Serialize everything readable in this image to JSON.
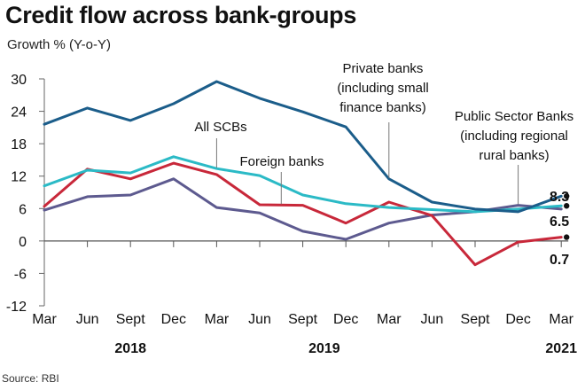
{
  "title": "Credit flow across bank-groups",
  "subtitle": "Growth % (Y-o-Y)",
  "source": "Source: RBI",
  "chart_data": {
    "type": "line",
    "title": "Credit flow across bank-groups",
    "ylabel": "Growth % (Y-o-Y)",
    "xlabel": "",
    "ylim": [
      -12,
      30
    ],
    "yticks": [
      "30",
      "24",
      "18",
      "12",
      "6",
      "0",
      "-6",
      "-12"
    ],
    "ytick_values": [
      30,
      24,
      18,
      12,
      6,
      0,
      -6,
      -12
    ],
    "categories": [
      "Mar",
      "Jun",
      "Sept",
      "Dec",
      "Mar",
      "Jun",
      "Sept",
      "Dec",
      "Mar",
      "Jun",
      "Sept",
      "Dec",
      "Mar"
    ],
    "years": [
      {
        "label": "2018",
        "under_index": 2
      },
      {
        "label": "2019",
        "under_index": 6.5
      },
      {
        "label": "2021",
        "under_index": 12
      }
    ],
    "grid": false,
    "series": [
      {
        "name": "Private banks (including small finance banks)",
        "color": "#1b5d8a",
        "values": [
          21.6,
          24.6,
          22.3,
          25.4,
          29.5,
          26.4,
          23.9,
          21.1,
          11.5,
          7.2,
          5.9,
          5.4,
          8.3
        ]
      },
      {
        "name": "All SCBs",
        "color": "#2bbac6",
        "values": [
          10.2,
          13.1,
          12.6,
          15.6,
          13.4,
          12.1,
          8.5,
          6.9,
          6.2,
          5.8,
          5.4,
          5.9,
          6.5
        ]
      },
      {
        "name": "Foreign banks",
        "color": "#c8283a",
        "values": [
          6.4,
          13.3,
          11.5,
          14.4,
          12.3,
          6.7,
          6.6,
          3.3,
          7.2,
          4.7,
          -4.4,
          -0.2,
          0.7
        ]
      },
      {
        "name": "Public Sector Banks (including regional rural banks)",
        "color": "#5d5a8f",
        "values": [
          5.7,
          8.2,
          8.5,
          11.5,
          6.2,
          5.2,
          1.8,
          0.3,
          3.3,
          4.8,
          5.4,
          6.6,
          5.9
        ]
      }
    ],
    "annotations": [
      {
        "name": "private-banks",
        "lines": [
          "Private banks",
          "(including small",
          "finance banks)"
        ],
        "series": 0,
        "at_index": 8
      },
      {
        "name": "public-sector-banks",
        "lines": [
          "Public Sector Banks",
          "(including regional",
          "rural banks)"
        ],
        "series": 3,
        "at_index": 11
      },
      {
        "name": "all-scbs",
        "lines": [
          "All SCBs"
        ],
        "series": 1,
        "at_index": 4
      },
      {
        "name": "foreign-banks",
        "lines": [
          "Foreign banks"
        ],
        "series": 2,
        "at_index": 5.5
      }
    ],
    "end_labels": [
      {
        "text": "8.3",
        "series": 0
      },
      {
        "text": "6.5",
        "series": 1
      },
      {
        "text": "0.7",
        "series": 2
      }
    ]
  }
}
